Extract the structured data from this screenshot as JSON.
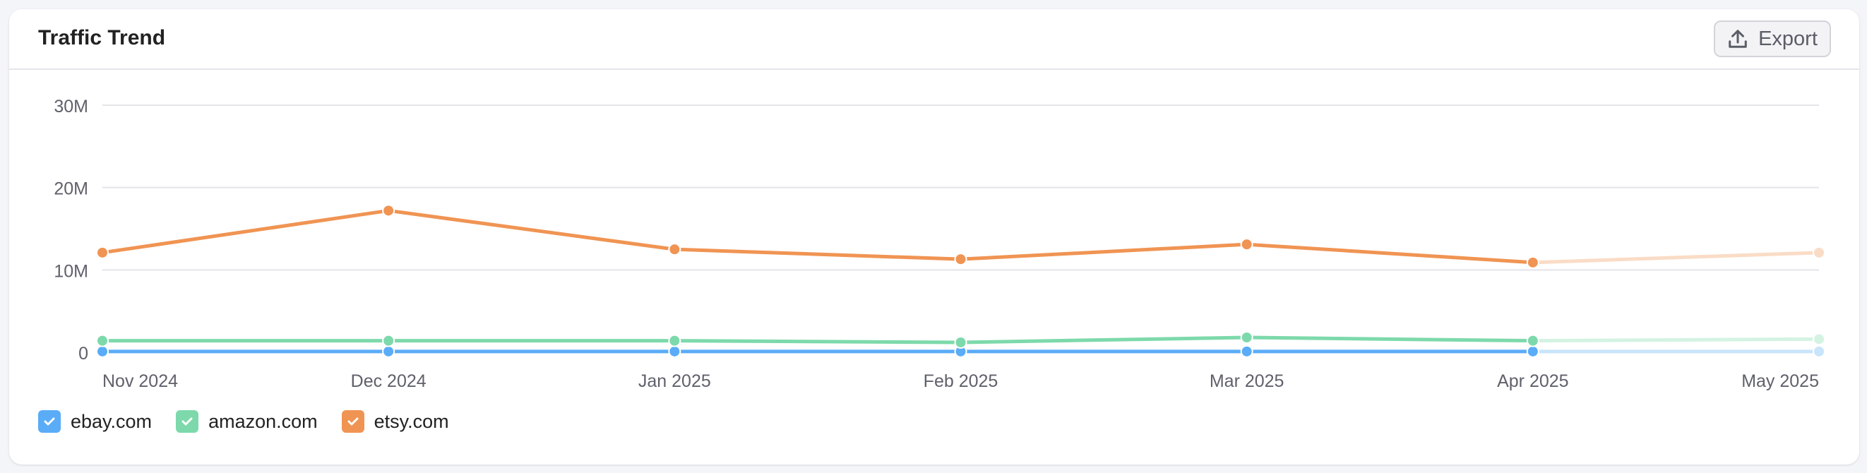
{
  "header": {
    "title": "Traffic Trend",
    "export_label": "Export",
    "export_icon": "upload-icon"
  },
  "chart_data": {
    "type": "line",
    "title": "",
    "xlabel": "",
    "ylabel": "",
    "categories": [
      "Nov 2024",
      "Dec 2024",
      "Jan 2025",
      "Feb 2025",
      "Mar 2025",
      "Apr 2025",
      "May 2025"
    ],
    "ylim": [
      0,
      30000000
    ],
    "yticks": [
      {
        "value": 30000000,
        "label": "30M"
      },
      {
        "value": 20000000,
        "label": "20M"
      },
      {
        "value": 10000000,
        "label": "10M"
      },
      {
        "value": 0,
        "label": "0"
      }
    ],
    "grid": true,
    "legend_placement": "bottom-left",
    "faded_last_segment": true,
    "series": [
      {
        "name": "ebay.com",
        "color": "#5aacf7",
        "faded_color": "#c9e5fb",
        "values": [
          100000,
          100000,
          100000,
          100000,
          100000,
          100000,
          100000
        ]
      },
      {
        "name": "amazon.com",
        "color": "#7dd9ab",
        "faded_color": "#d4f3e3",
        "values": [
          1400000,
          1400000,
          1400000,
          1200000,
          1800000,
          1400000,
          1600000
        ]
      },
      {
        "name": "etsy.com",
        "color": "#f09453",
        "faded_color": "#fadcc6",
        "values": [
          12100000,
          17200000,
          12500000,
          11300000,
          13100000,
          10900000,
          12100000
        ]
      }
    ]
  }
}
